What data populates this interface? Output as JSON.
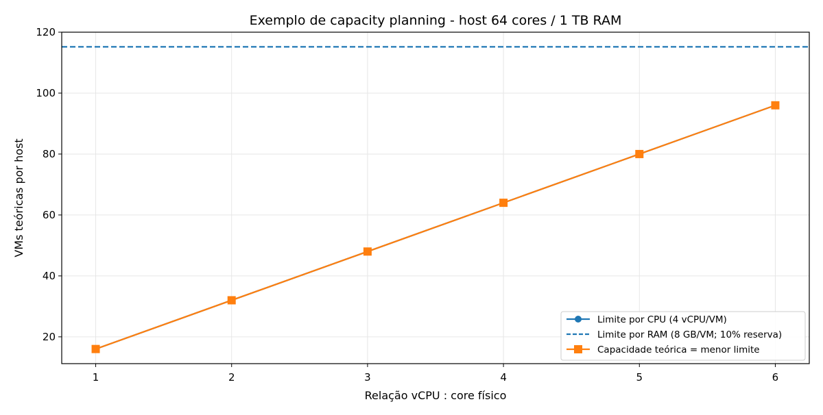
{
  "chart_data": {
    "type": "line",
    "title": "Exemplo de capacity planning - host 64 cores / 1 TB RAM",
    "xlabel": "Relação vCPU : core físico",
    "ylabel": "VMs teóricas por host",
    "x": [
      1,
      2,
      3,
      4,
      5,
      6
    ],
    "xlim": [
      0.75,
      6.25
    ],
    "ylim": [
      11.2,
      120
    ],
    "xticks": [
      "1",
      "2",
      "3",
      "4",
      "5",
      "6"
    ],
    "yticks": [
      "20",
      "40",
      "60",
      "80",
      "100",
      "120"
    ],
    "grid": true,
    "legend_position": "lower-right",
    "series": [
      {
        "name": "Limite por CPU (4 vCPU/VM)",
        "values": [
          16,
          32,
          48,
          64,
          80,
          96
        ],
        "color": "#1f77b4",
        "style": "solid",
        "marker": "circle"
      },
      {
        "name": "Limite por RAM (8 GB/VM; 10% reserva)",
        "values": [
          115.2,
          115.2,
          115.2,
          115.2,
          115.2,
          115.2
        ],
        "color": "#1f77b4",
        "style": "dashed",
        "marker": "none"
      },
      {
        "name": "Capacidade teórica = menor limite",
        "values": [
          16,
          32,
          48,
          64,
          80,
          96
        ],
        "color": "#ff7f0e",
        "style": "solid",
        "marker": "square"
      }
    ]
  }
}
